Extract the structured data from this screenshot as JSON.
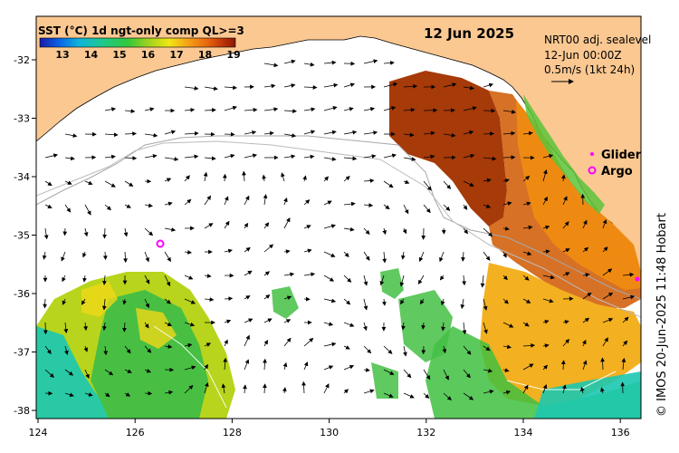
{
  "title": {
    "colorbar_label": "SST (°C) 1d ngt-only comp QL>=3",
    "date": "12 Jun 2025"
  },
  "colorbar": {
    "ticks": [
      "13",
      "14",
      "15",
      "16",
      "17",
      "18",
      "19"
    ],
    "colors": [
      "#1a1aa8",
      "#0a64e6",
      "#10b4dc",
      "#20c88c",
      "#32c83c",
      "#9ad21e",
      "#f0e614",
      "#f5a018",
      "#e8640f",
      "#b83208",
      "#8a1a06"
    ]
  },
  "info": {
    "line1": "NRT00 adj. sealevel",
    "line2": "12-Jun 00:00Z",
    "line3": "0.5m/s (1kt 24h)"
  },
  "legend": {
    "glider": "Glider",
    "argo": "Argo",
    "glider_color": "#ff00ff",
    "argo_color": "#ff00ff"
  },
  "axes": {
    "x_ticks": [
      "124",
      "126",
      "128",
      "130",
      "132",
      "134",
      "136"
    ],
    "y_ticks": [
      "-32",
      "-33",
      "-34",
      "-35",
      "-36",
      "-37",
      "-38"
    ]
  },
  "credit": "© IMOS 20-Jun-2025 11:48 Hobart",
  "colors": {
    "land": "#fbc892",
    "ocean": "#ffffff",
    "frame": "#000000"
  }
}
